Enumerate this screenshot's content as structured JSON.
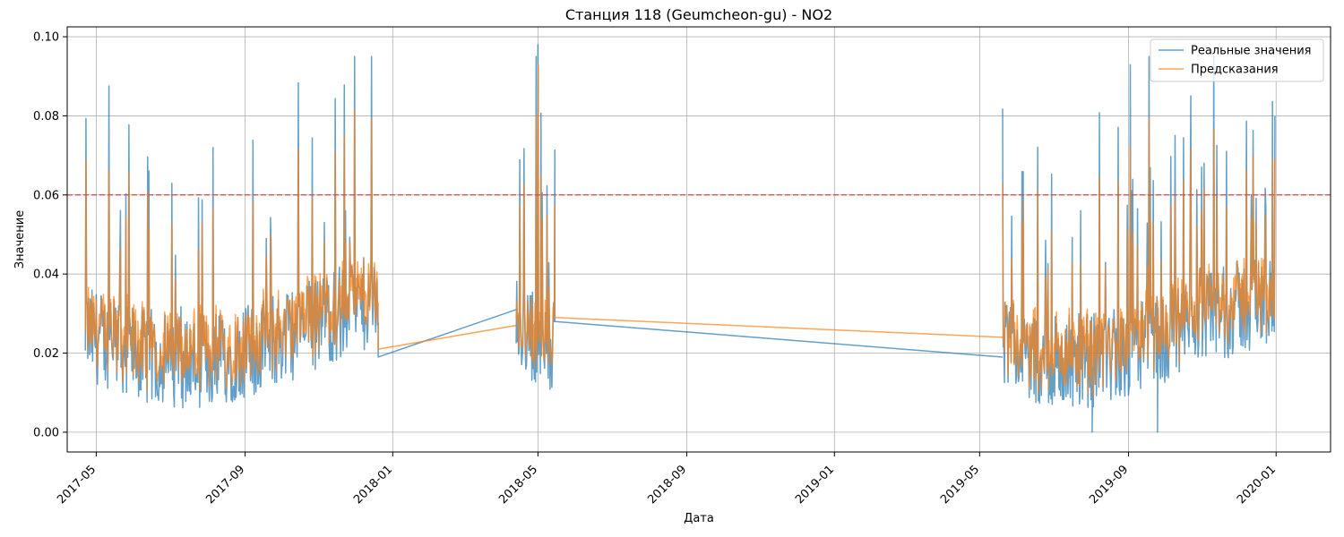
{
  "chart_data": {
    "type": "line",
    "title": "Станция 118 (Geumcheon-gu) - NO2",
    "xlabel": "Дата",
    "ylabel": "Значение",
    "xlim": [
      "2017-04-07",
      "2020-02-15"
    ],
    "ylim": [
      -0.005,
      0.1025
    ],
    "x_ticks": [
      "2017-05",
      "2017-09",
      "2018-01",
      "2018-05",
      "2018-09",
      "2019-01",
      "2019-05",
      "2019-09",
      "2020-01"
    ],
    "y_ticks": [
      "0.00",
      "0.02",
      "0.04",
      "0.06",
      "0.08",
      "0.10"
    ],
    "grid": true,
    "legend": "top-right",
    "threshold": {
      "value": 0.06,
      "color": "#e24a4a",
      "style": "dashed"
    },
    "segments": [
      {
        "start": "2017-04-22",
        "end": "2017-12-20"
      },
      {
        "start": "2018-04-13",
        "end": "2018-05-15"
      },
      {
        "start": "2019-05-20",
        "end": "2019-12-31"
      }
    ],
    "series": [
      {
        "name": "Реальные значения",
        "color": "#1f77b4",
        "range": [
          0.0,
          0.098
        ],
        "peak": {
          "x": "2018-05-01",
          "y": 0.098
        },
        "gap_links": [
          {
            "from": {
              "x": "2017-12-20",
              "y": 0.019
            },
            "to": {
              "x": "2018-04-13",
              "y": 0.031
            }
          },
          {
            "from": {
              "x": "2018-05-15",
              "y": 0.028
            },
            "to": {
              "x": "2019-05-20",
              "y": 0.019
            }
          }
        ]
      },
      {
        "name": "Предсказания",
        "color": "#ff7f0e",
        "range": [
          0.008,
          0.093
        ],
        "peak": {
          "x": "2018-05-01",
          "y": 0.093
        },
        "gap_links": [
          {
            "from": {
              "x": "2017-12-20",
              "y": 0.021
            },
            "to": {
              "x": "2018-04-13",
              "y": 0.027
            }
          },
          {
            "from": {
              "x": "2018-05-15",
              "y": 0.029
            },
            "to": {
              "x": "2019-05-20",
              "y": 0.024
            }
          }
        ]
      }
    ]
  }
}
